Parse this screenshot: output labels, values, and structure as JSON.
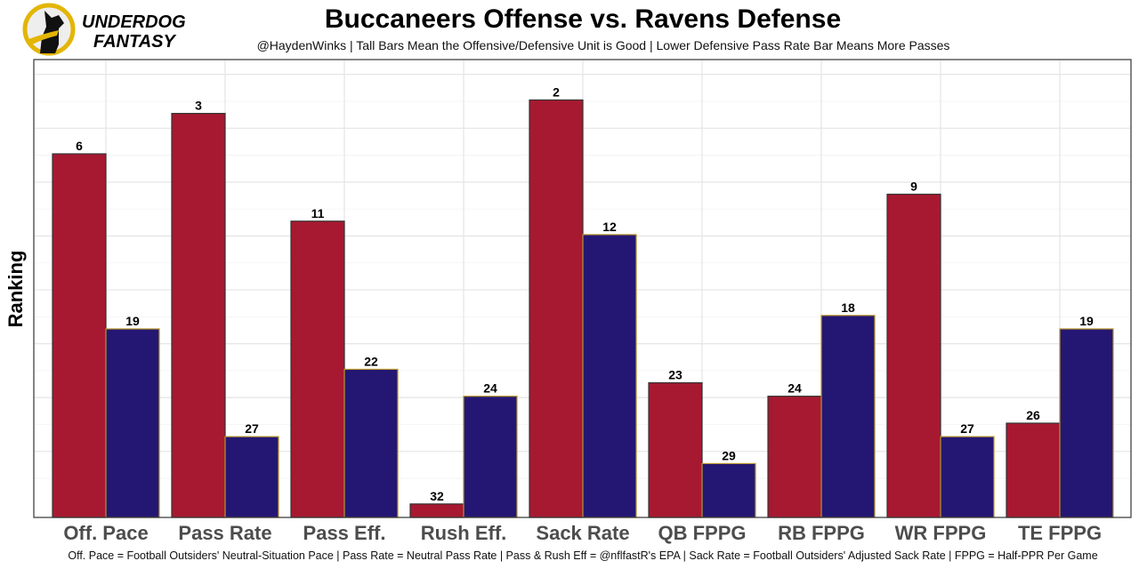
{
  "logo": {
    "line1": "UNDERDOG",
    "line2": "FANTASY"
  },
  "chart_data": {
    "type": "bar",
    "title": "Buccaneers Offense vs. Ravens Defense",
    "subtitle": "@HaydenWinks | Tall Bars Mean the Offensive/Defensive Unit is Good | Lower Defensive Pass Rate Bar Means More Passes",
    "caption": "Off. Pace = Football Outsiders' Neutral-Situation Pace | Pass Rate = Neutral Pass Rate | Pass & Rush Eff = @nflfastR's EPA | Sack Rate = Football Outsiders' Adjusted Sack Rate | FPPG = Half-PPR Per Game",
    "xlabel": "",
    "ylabel": "Ranking",
    "categories": [
      "Off. Pace",
      "Pass Rate",
      "Pass Eff.",
      "Rush Eff.",
      "Sack Rate",
      "QB FPPG",
      "RB FPPG",
      "WR FPPG",
      "TE FPPG"
    ],
    "series": [
      {
        "name": "Buccaneers Offense",
        "color": "#A71930",
        "values": [
          6,
          3,
          11,
          32,
          2,
          23,
          24,
          9,
          26
        ]
      },
      {
        "name": "Ravens Defense",
        "color": "#241773",
        "values": [
          19,
          27,
          22,
          24,
          12,
          29,
          18,
          27,
          19
        ]
      }
    ],
    "bar_height_rule": "33 - rank",
    "ylim": [
      0,
      34
    ],
    "grid": true,
    "legend": "none"
  }
}
